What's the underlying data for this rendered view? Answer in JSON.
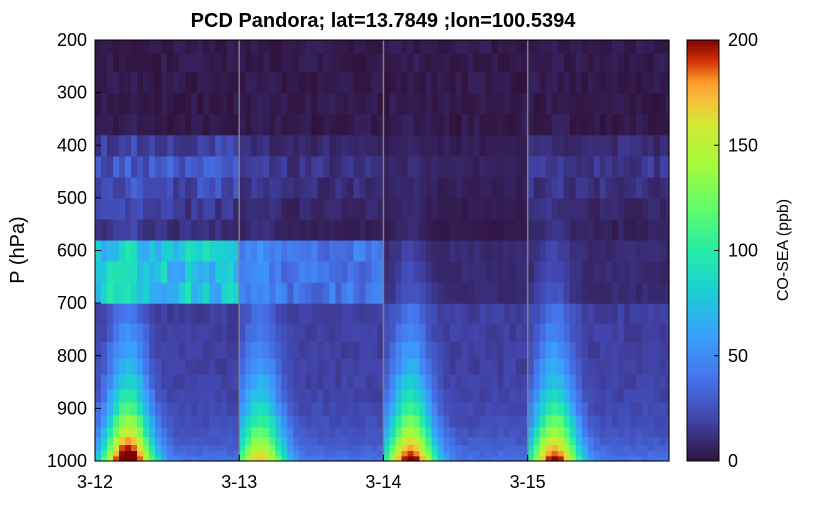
{
  "chart_data": {
    "type": "heatmap",
    "title": "PCD Pandora; lat=13.7849 ;lon=100.5394",
    "xlabel": "",
    "ylabel": "P (hPa)",
    "colorbar_label": "CO-SEA (ppb)",
    "colormap": "turbo",
    "clim": [
      0,
      200
    ],
    "colorbar_ticks": [
      0,
      50,
      100,
      150,
      200
    ],
    "x_ticks": [
      "3-12",
      "3-13",
      "3-14",
      "3-15"
    ],
    "x_range_days": [
      0,
      3.98
    ],
    "y_ticks": [
      200,
      300,
      400,
      500,
      600,
      700,
      800,
      900,
      1000
    ],
    "ylim": [
      200,
      1000
    ],
    "y_reversed": true,
    "day_separators": [
      1,
      2,
      3
    ],
    "time_step_hours": 1,
    "pressure_levels_hPa": [
      995,
      985,
      975,
      962,
      945,
      925,
      900,
      875,
      850,
      820,
      790,
      755,
      720,
      680,
      640,
      600,
      560,
      520,
      480,
      440,
      400,
      360,
      320,
      280,
      240,
      210
    ],
    "profile_model": {
      "description": "Approximate CO-SEA (ppb) per day; values read from the colour map",
      "days": [
        {
          "surface_peak": 195,
          "peak_hour": 5,
          "mid_level_660": 95,
          "upper_420": 40
        },
        {
          "surface_peak": 140,
          "peak_hour": 3,
          "mid_level_660": 50,
          "upper_420": 20
        },
        {
          "surface_peak": 175,
          "peak_hour": 4,
          "mid_level_660": 12,
          "upper_420": 10
        },
        {
          "surface_peak": 170,
          "peak_hour": 4,
          "mid_level_660": 12,
          "upper_420": 22
        }
      ]
    }
  }
}
